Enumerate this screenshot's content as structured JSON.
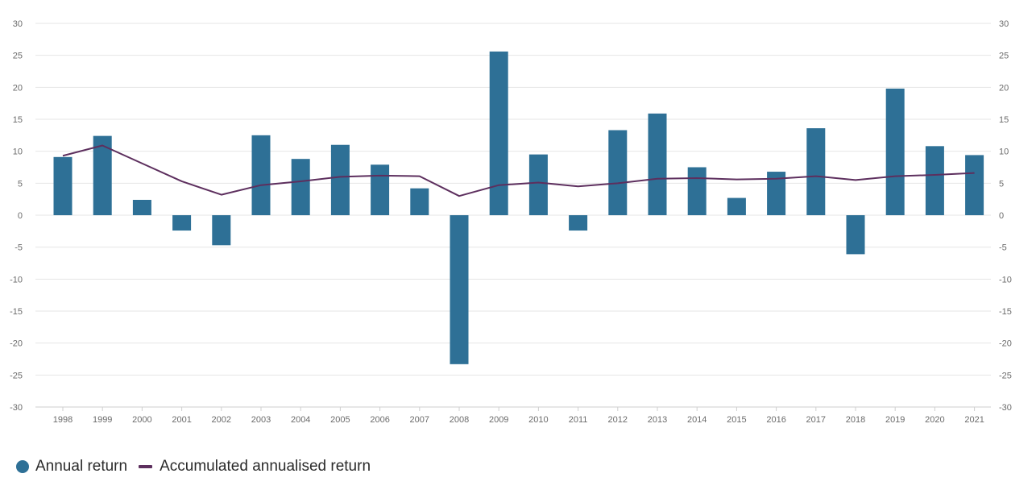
{
  "chart_data": {
    "type": "bar",
    "categories": [
      "1998",
      "1999",
      "2000",
      "2001",
      "2002",
      "2003",
      "2004",
      "2005",
      "2006",
      "2007",
      "2008",
      "2009",
      "2010",
      "2011",
      "2012",
      "2013",
      "2014",
      "2015",
      "2016",
      "2017",
      "2018",
      "2019",
      "2020",
      "2021"
    ],
    "series": [
      {
        "name": "Annual return",
        "type": "bar",
        "color": "#2e7096",
        "values": [
          9.1,
          12.4,
          2.4,
          -2.4,
          -4.7,
          12.5,
          8.8,
          11.0,
          7.9,
          4.2,
          -23.3,
          25.6,
          9.5,
          -2.4,
          13.3,
          15.9,
          7.5,
          2.7,
          6.8,
          13.6,
          -6.1,
          19.8,
          10.8,
          9.4
        ]
      },
      {
        "name": "Accumulated annualised return",
        "type": "line",
        "color": "#5d2f5e",
        "values": [
          9.3,
          10.9,
          8.1,
          5.3,
          3.2,
          4.7,
          5.3,
          6.0,
          6.2,
          6.1,
          3.0,
          4.7,
          5.1,
          4.5,
          5.0,
          5.7,
          5.8,
          5.6,
          5.7,
          6.1,
          5.5,
          6.1,
          6.3,
          6.6
        ]
      }
    ],
    "ylim": [
      -30,
      30
    ],
    "yticks": [
      30,
      25,
      20,
      15,
      10,
      5,
      0,
      -5,
      -10,
      -15,
      -20,
      -25,
      -30
    ],
    "axes": "left-and-right",
    "grid": true,
    "legend_position": "bottom-left",
    "title": "",
    "xlabel": "",
    "ylabel": ""
  }
}
